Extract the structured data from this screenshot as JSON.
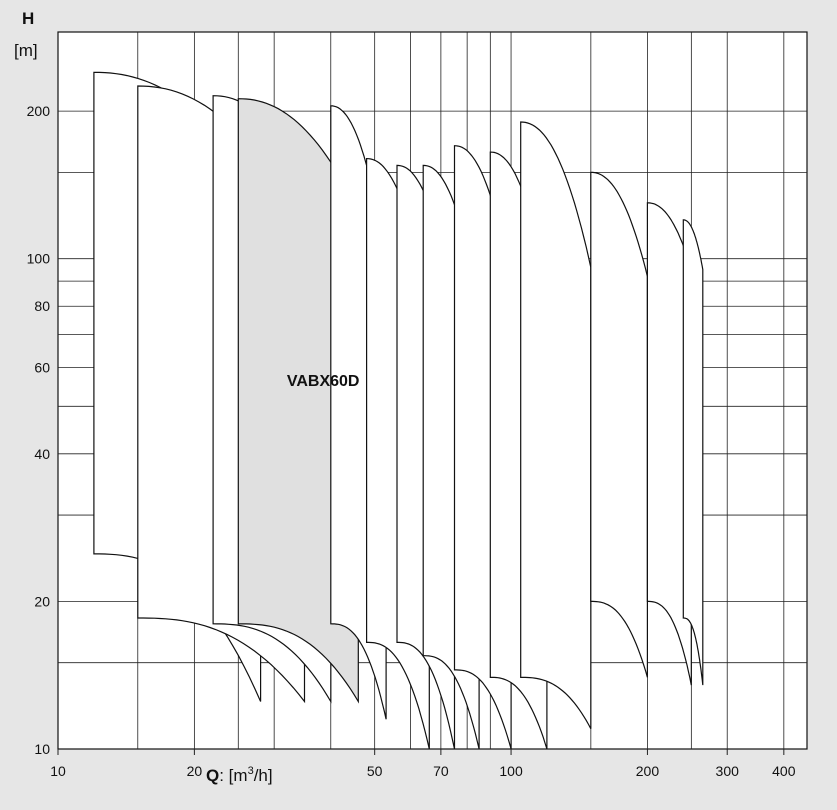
{
  "chart_data": {
    "type": "area",
    "y_axis_title": "H",
    "y_axis_unit": "[m]",
    "x_axis_title": "Q",
    "x_axis_unit_prefix": ": [m",
    "x_axis_unit_sup": "3",
    "x_axis_unit_suffix": "/h]",
    "x_scale": "log",
    "y_scale": "log",
    "xlim": [
      10,
      450
    ],
    "ylim": [
      10,
      290
    ],
    "grid": true,
    "x_ticks": [
      "10",
      "20",
      "50",
      "70",
      "100",
      "200",
      "300",
      "400"
    ],
    "y_ticks": [
      "10",
      "20",
      "40",
      "60",
      "80",
      "100",
      "200"
    ],
    "highlighted_label": "VABX60D",
    "highlight_color": "#e0e0e0",
    "curve_fill": "#ffffff",
    "stroke_color": "#111111",
    "regions": [
      {
        "q_min": 12,
        "q_max": 28,
        "h_top_start": 240,
        "h_top_end": 140,
        "h_bottom_start": 25,
        "h_bottom_end": 12.5
      },
      {
        "q_min": 15,
        "q_max": 35,
        "h_top_start": 225,
        "h_top_end": 114,
        "h_bottom_start": 18.5,
        "h_bottom_end": 12.5
      },
      {
        "q_min": 22,
        "q_max": 40,
        "h_top_start": 215,
        "h_top_end": 104,
        "h_bottom_start": 18,
        "h_bottom_end": 12.5
      },
      {
        "q_min": 25,
        "q_max": 46,
        "h_top_start": 212,
        "h_top_end": 125,
        "h_bottom_start": 18,
        "h_bottom_end": 12.5
      },
      {
        "q_min": 40,
        "q_max": 53,
        "h_top_start": 205,
        "h_top_end": 99,
        "h_bottom_start": 18,
        "h_bottom_end": 11.5
      },
      {
        "q_min": 48,
        "q_max": 66,
        "h_top_start": 160,
        "h_top_end": 80,
        "h_bottom_start": 16.5,
        "h_bottom_end": 10
      },
      {
        "q_min": 56,
        "q_max": 75,
        "h_top_start": 155,
        "h_top_end": 80,
        "h_bottom_start": 16.5,
        "h_bottom_end": 10
      },
      {
        "q_min": 64,
        "q_max": 85,
        "h_top_start": 155,
        "h_top_end": 80,
        "h_bottom_start": 15.5,
        "h_bottom_end": 10
      },
      {
        "q_min": 75,
        "q_max": 100,
        "h_top_start": 170,
        "h_top_end": 90,
        "h_bottom_start": 14.5,
        "h_bottom_end": 10
      },
      {
        "q_min": 90,
        "q_max": 120,
        "h_top_start": 165,
        "h_top_end": 88,
        "h_bottom_start": 14,
        "h_bottom_end": 10
      },
      {
        "q_min": 105,
        "q_max": 150,
        "h_top_start": 190,
        "h_top_end": 96,
        "h_bottom_start": 14,
        "h_bottom_end": 11
      },
      {
        "q_min": 150,
        "q_max": 200,
        "h_top_start": 150,
        "h_top_end": 92,
        "h_bottom_start": 20,
        "h_bottom_end": 14
      },
      {
        "q_min": 200,
        "q_max": 250,
        "h_top_start": 130,
        "h_top_end": 95,
        "h_bottom_start": 20,
        "h_bottom_end": 13.5
      },
      {
        "q_min": 240,
        "q_max": 265,
        "h_top_start": 120,
        "h_top_end": 95,
        "h_bottom_start": 18.5,
        "h_bottom_end": 13.5
      }
    ],
    "highlighted_region_index": 3,
    "label_position": {
      "q": 32,
      "h": 55
    }
  }
}
